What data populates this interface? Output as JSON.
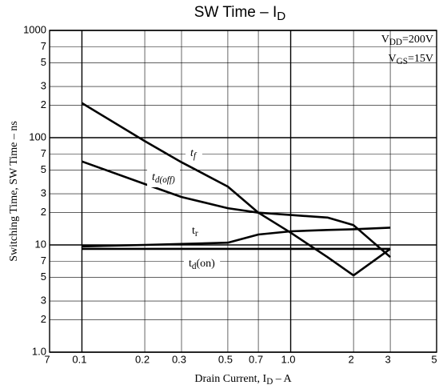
{
  "chart_data": {
    "type": "line",
    "title_parts": [
      {
        "text": "SW Time  –  I"
      },
      {
        "text": "D",
        "sub": true
      }
    ],
    "y_label": "Switching Time, SW Time  –  ns",
    "x_label_parts": [
      {
        "text": "Drain Current, I"
      },
      {
        "text": "D",
        "sub": true
      },
      {
        "text": "  –  A"
      }
    ],
    "annotations": [
      [
        {
          "text": "V"
        },
        {
          "text": "DD",
          "sub": true
        },
        {
          "text": "=200V"
        }
      ],
      [
        {
          "text": "V"
        },
        {
          "text": "GS",
          "sub": true
        },
        {
          "text": "=15V"
        }
      ]
    ],
    "log_x": true,
    "log_y": true,
    "grid": true,
    "xlim": [
      0.07,
      5
    ],
    "ylim": [
      1,
      1000
    ],
    "xticks": [
      {
        "value": 0.07,
        "label": "7"
      },
      0.1,
      0.2,
      0.3,
      0.5,
      0.7,
      {
        "value": 1,
        "label": "1.0"
      },
      2,
      3,
      5
    ],
    "yticks": [
      {
        "value": 1,
        "label": "1.0"
      },
      2,
      3,
      5,
      7,
      10,
      {
        "value": 20,
        "label": "2"
      },
      {
        "value": 30,
        "label": "3"
      },
      {
        "value": 50,
        "label": "5"
      },
      {
        "value": 70,
        "label": "7"
      },
      100,
      {
        "value": 200,
        "label": "2"
      },
      {
        "value": 300,
        "label": "3"
      },
      {
        "value": 500,
        "label": "5"
      },
      {
        "value": 700,
        "label": "7"
      },
      1000
    ],
    "x": [
      0.1,
      0.2,
      0.3,
      0.5,
      0.7,
      1.0,
      1.5,
      2.0,
      3.0
    ],
    "series": [
      {
        "label_parts": [
          {
            "text": "t"
          },
          {
            "text": "f",
            "sub": true
          }
        ],
        "color": "#000",
        "values": [
          210,
          93,
          59,
          35,
          20,
          13,
          7.7,
          5.2,
          9.2
        ]
      },
      {
        "label_parts": [
          {
            "text": "t"
          },
          {
            "text": "d(off)",
            "sub": true
          }
        ],
        "color": "#000",
        "values": [
          60,
          37,
          28,
          22,
          20,
          19,
          18,
          15.3,
          7.7
        ]
      },
      {
        "label_parts": [
          {
            "text": "t"
          },
          {
            "text": "r",
            "sub": true
          }
        ],
        "color": "#000",
        "values": [
          9.7,
          10,
          10.2,
          10.5,
          12.5,
          13.4,
          13.8,
          14,
          14.5
        ]
      },
      {
        "label_parts": [
          {
            "text": "t"
          },
          {
            "text": "d",
            "sub": true
          },
          {
            "text": "(on)"
          }
        ],
        "color": "#000",
        "values": [
          9.2,
          9.2,
          9.2,
          9.2,
          9.2,
          9.2,
          9.2,
          9.2,
          9.2
        ]
      }
    ]
  }
}
